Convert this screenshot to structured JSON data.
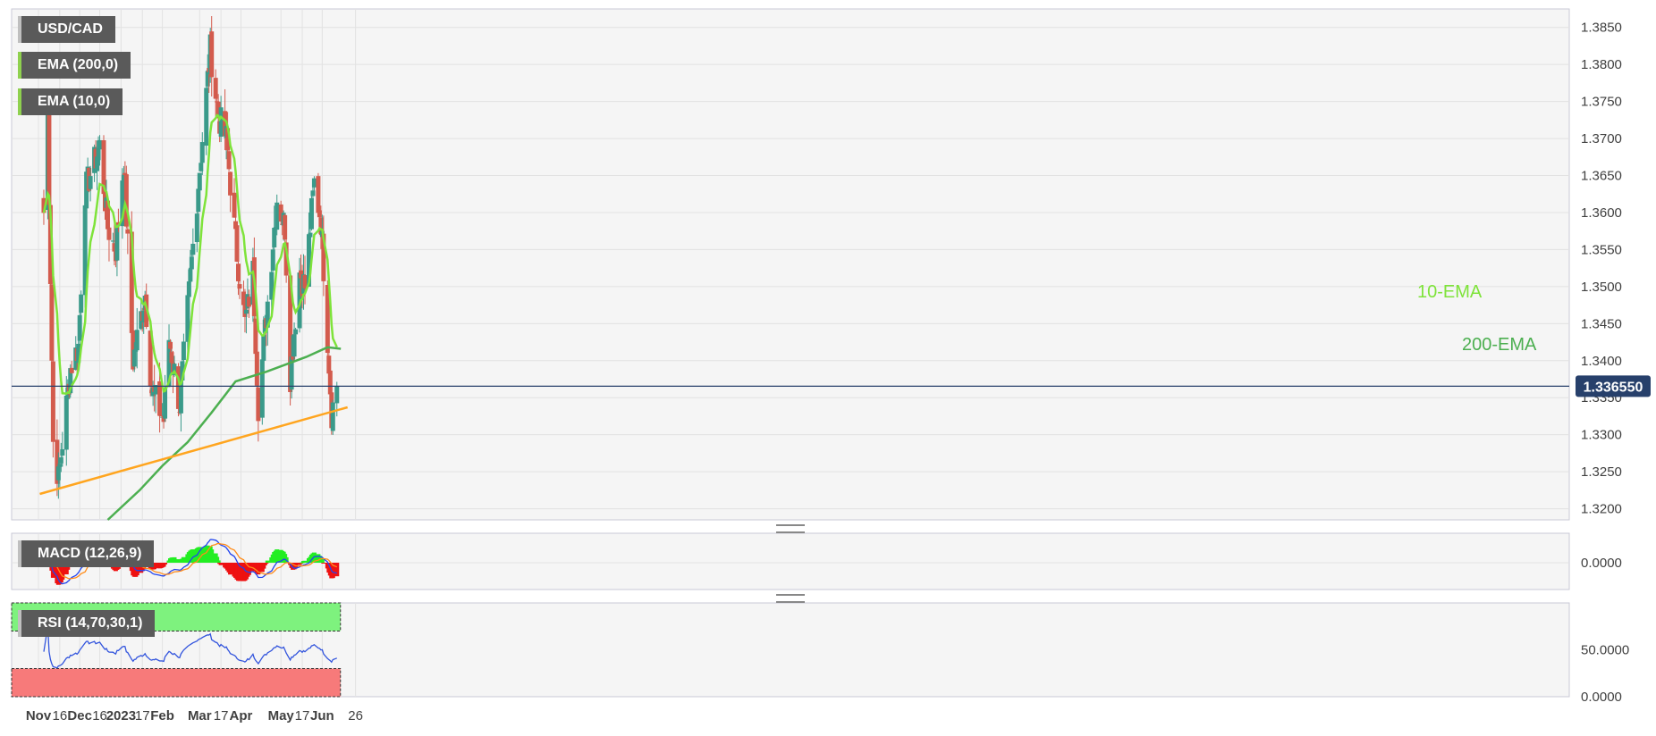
{
  "symbol": "USD/CAD",
  "indicators": {
    "ema200": "EMA (200,0)",
    "ema10": "EMA (10,0)",
    "macd": "MACD (12,26,9)",
    "rsi": "RSI (14,70,30,1)"
  },
  "annotations": {
    "ema10": "10-EMA",
    "ema200": "200-EMA"
  },
  "current_price": "1.336550",
  "colors": {
    "up": "#3a9a8a",
    "down": "#d35b4d",
    "ema10": "#7ee33a",
    "ema200": "#4caf50",
    "trend": "#ffa51f",
    "macd": "#2244ee",
    "signal": "#ff8c1a",
    "hist_pos": "#22ee22",
    "hist_neg": "#ee1111",
    "rsi": "#3355dd",
    "overbought": "#7ef27e",
    "oversold": "#f77a7a"
  },
  "chart_data": [
    {
      "type": "candlestick",
      "title": "USD/CAD",
      "y_ticks": [
        "1.3850",
        "1.3800",
        "1.3750",
        "1.3700",
        "1.3650",
        "1.3600",
        "1.3550",
        "1.3500",
        "1.3450",
        "1.3400",
        "1.3350",
        "1.3300",
        "1.3250",
        "1.3200"
      ],
      "ylim": [
        1.3185,
        1.3875
      ],
      "x_labels": [
        "Nov",
        "16",
        "Dec",
        "16",
        "2023",
        "17",
        "Feb",
        "Mar",
        "17",
        "Apr",
        "May",
        "17",
        "Jun",
        "26"
      ],
      "x_label_bold": [
        "Nov",
        "Dec",
        "2023",
        "Feb",
        "Mar",
        "Apr",
        "May",
        "Jun"
      ],
      "anchors": [
        {
          "date": "2022-11-04",
          "close": 1.36
        },
        {
          "date": "2022-11-07",
          "close": 1.374
        },
        {
          "date": "2022-11-11",
          "close": 1.329
        },
        {
          "date": "2022-11-15",
          "close": 1.324
        },
        {
          "date": "2022-11-24",
          "close": 1.339
        },
        {
          "date": "2022-11-30",
          "close": 1.342
        },
        {
          "date": "2022-12-05",
          "close": 1.363
        },
        {
          "date": "2022-12-16",
          "close": 1.369
        },
        {
          "date": "2022-12-22",
          "close": 1.358
        },
        {
          "date": "2022-12-28",
          "close": 1.355
        },
        {
          "date": "2023-01-03",
          "close": 1.367
        },
        {
          "date": "2023-01-10",
          "close": 1.34
        },
        {
          "date": "2023-01-19",
          "close": 1.349
        },
        {
          "date": "2023-01-24",
          "close": 1.336
        },
        {
          "date": "2023-02-02",
          "close": 1.332
        },
        {
          "date": "2023-02-06",
          "close": 1.343
        },
        {
          "date": "2023-02-14",
          "close": 1.334
        },
        {
          "date": "2023-02-27",
          "close": 1.362
        },
        {
          "date": "2023-03-09",
          "close": 1.382
        },
        {
          "date": "2023-03-15",
          "close": 1.373
        },
        {
          "date": "2023-03-21",
          "close": 1.37
        },
        {
          "date": "2023-03-28",
          "close": 1.356
        },
        {
          "date": "2023-04-04",
          "close": 1.345
        },
        {
          "date": "2023-04-10",
          "close": 1.352
        },
        {
          "date": "2023-04-14",
          "close": 1.334
        },
        {
          "date": "2023-04-28",
          "close": 1.362
        },
        {
          "date": "2023-05-04",
          "close": 1.358
        },
        {
          "date": "2023-05-08",
          "close": 1.338
        },
        {
          "date": "2023-05-15",
          "close": 1.352
        },
        {
          "date": "2023-05-19",
          "close": 1.35
        },
        {
          "date": "2023-05-26",
          "close": 1.364
        },
        {
          "date": "2023-05-31",
          "close": 1.359
        },
        {
          "date": "2023-06-05",
          "close": 1.343
        },
        {
          "date": "2023-06-08",
          "close": 1.333
        },
        {
          "date": "2023-06-12",
          "close": 1.3366
        }
      ],
      "trendline": [
        {
          "date": "2022-11-01",
          "value": 1.322
        },
        {
          "date": "2023-06-20",
          "value": 1.3337
        }
      ],
      "horizontal_line": 1.33655,
      "series": [
        {
          "name": "10-EMA"
        },
        {
          "name": "200-EMA"
        }
      ]
    },
    {
      "type": "bar",
      "title": "MACD (12,26,9)",
      "y_ticks": [
        "0.0000"
      ]
    },
    {
      "type": "line",
      "title": "RSI (14,70,30,1)",
      "y_ticks": [
        "50.0000",
        "0.0000"
      ],
      "ylim": [
        0,
        100
      ],
      "overbought": 70,
      "oversold": 30
    }
  ]
}
